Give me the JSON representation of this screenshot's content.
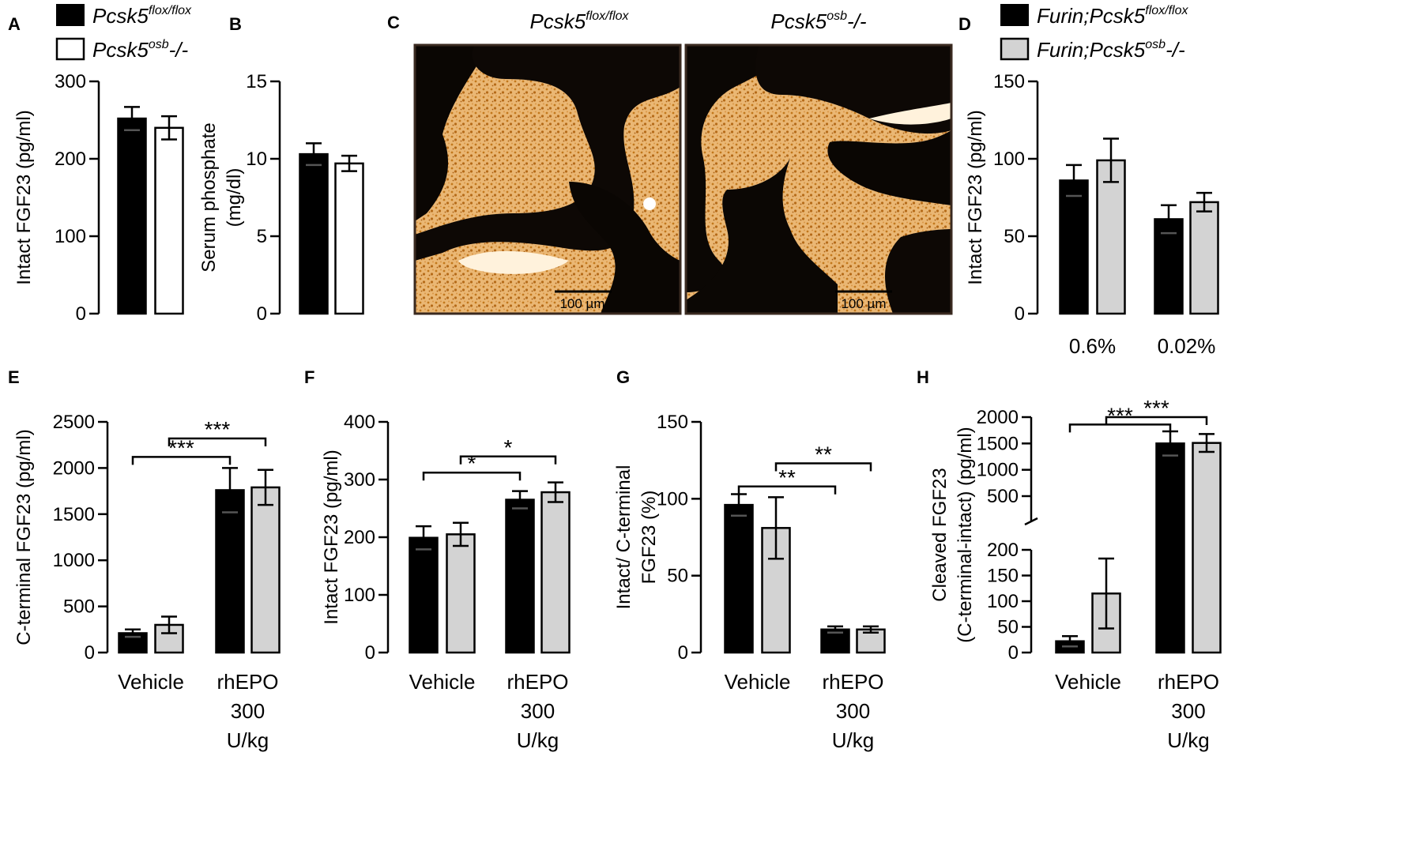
{
  "figure": {
    "legend_top_left": [
      {
        "gene": "Pcsk5",
        "sup": "flox/flox",
        "suffix": "",
        "fill": "#000000"
      },
      {
        "gene": "Pcsk5",
        "sup": "osb",
        "suffix": "-/-",
        "fill": "#ffffff"
      }
    ],
    "legend_top_right": [
      {
        "gene": "Furin;Pcsk5",
        "sup": "flox/flox",
        "suffix": "",
        "fill": "#000000"
      },
      {
        "gene": "Furin;Pcsk5",
        "sup": "osb",
        "suffix": "-/-",
        "fill": "#d3d3d3"
      }
    ],
    "micrographs": {
      "panel_label": "C",
      "titles": [
        {
          "gene": "Pcsk5",
          "sup": "flox/flox",
          "suffix": ""
        },
        {
          "gene": "Pcsk5",
          "sup": "osb",
          "suffix": "-/-"
        }
      ],
      "scale_bar": "100 µm"
    }
  },
  "chart_data": [
    {
      "panel": "A",
      "type": "bar",
      "ylabel": [
        "Intact FGF23 (pg/ml)"
      ],
      "ylim": [
        0,
        300
      ],
      "yticks": [
        0,
        100,
        200,
        300
      ],
      "categories": [
        ""
      ],
      "colors": [
        "#000000",
        "#ffffff"
      ],
      "series": [
        {
          "name": "Pcsk5 flox/flox",
          "values": [
            252
          ],
          "errors": [
            15
          ]
        },
        {
          "name": "Pcsk5 osb -/-",
          "values": [
            240
          ],
          "errors": [
            15
          ]
        }
      ],
      "brackets": []
    },
    {
      "panel": "B",
      "type": "bar",
      "ylabel": [
        "Serum phosphate",
        "(mg/dl)"
      ],
      "ylim": [
        0,
        15
      ],
      "yticks": [
        0,
        5,
        10,
        15
      ],
      "categories": [
        ""
      ],
      "colors": [
        "#000000",
        "#ffffff"
      ],
      "series": [
        {
          "name": "Pcsk5 flox/flox",
          "values": [
            10.3
          ],
          "errors": [
            0.7
          ]
        },
        {
          "name": "Pcsk5 osb -/-",
          "values": [
            9.7
          ],
          "errors": [
            0.5
          ]
        }
      ],
      "brackets": []
    },
    {
      "panel": "D",
      "type": "bar",
      "ylabel": [
        "Intact FGF23 (pg/ml)"
      ],
      "ylim": [
        0,
        150
      ],
      "yticks": [
        0,
        50,
        100,
        150
      ],
      "categories": [
        "0.6%",
        "0.02%"
      ],
      "colors": [
        "#000000",
        "#d3d3d3"
      ],
      "series": [
        {
          "name": "Furin;Pcsk5 flox/flox",
          "values": [
            86,
            61
          ],
          "errors": [
            10,
            9
          ]
        },
        {
          "name": "Furin;Pcsk5 osb -/-",
          "values": [
            99,
            72
          ],
          "errors": [
            14,
            6
          ]
        }
      ],
      "brackets": []
    },
    {
      "panel": "E",
      "type": "bar",
      "ylabel": [
        "C-terminal FGF23 (pg/ml)"
      ],
      "ylim": [
        0,
        2500
      ],
      "yticks": [
        0,
        500,
        1000,
        1500,
        2000,
        2500
      ],
      "categories": [
        "Vehicle",
        "rhEPO\n300\nU/kg"
      ],
      "colors": [
        "#000000",
        "#d3d3d3"
      ],
      "series": [
        {
          "name": "Furin;Pcsk5 flox/flox",
          "values": [
            210,
            1760
          ],
          "errors": [
            40,
            240
          ]
        },
        {
          "name": "Furin;Pcsk5 osb -/-",
          "values": [
            300,
            1790
          ],
          "errors": [
            90,
            190
          ]
        }
      ],
      "brackets": [
        {
          "from": [
            0,
            0
          ],
          "to": [
            1,
            0
          ],
          "label": "***",
          "y": 2120
        },
        {
          "from": [
            0,
            1
          ],
          "to": [
            1,
            1
          ],
          "label": "***",
          "y": 2320
        }
      ]
    },
    {
      "panel": "F",
      "type": "bar",
      "ylabel": [
        "Intact FGF23 (pg/ml)"
      ],
      "ylim": [
        0,
        400
      ],
      "yticks": [
        0,
        100,
        200,
        300,
        400
      ],
      "categories": [
        "Vehicle",
        "rhEPO\n300\nU/kg"
      ],
      "colors": [
        "#000000",
        "#d3d3d3"
      ],
      "series": [
        {
          "name": "Furin;Pcsk5 flox/flox",
          "values": [
            199,
            265
          ],
          "errors": [
            20,
            15
          ]
        },
        {
          "name": "Furin;Pcsk5 osb -/-",
          "values": [
            205,
            278
          ],
          "errors": [
            20,
            17
          ]
        }
      ],
      "brackets": [
        {
          "from": [
            0,
            0
          ],
          "to": [
            1,
            0
          ],
          "label": "*",
          "y": 312
        },
        {
          "from": [
            0,
            1
          ],
          "to": [
            1,
            1
          ],
          "label": "*",
          "y": 340
        }
      ]
    },
    {
      "panel": "G",
      "type": "bar",
      "ylabel": [
        "Intact/ C-terminal",
        "FGF23 (%)"
      ],
      "ylim": [
        0,
        150
      ],
      "yticks": [
        0,
        50,
        100,
        150
      ],
      "categories": [
        "Vehicle",
        "rhEPO\n300\nU/kg"
      ],
      "colors": [
        "#000000",
        "#d3d3d3"
      ],
      "series": [
        {
          "name": "Furin;Pcsk5 flox/flox",
          "values": [
            96,
            15
          ],
          "errors": [
            7,
            2
          ]
        },
        {
          "name": "Furin;Pcsk5 osb -/-",
          "values": [
            81,
            15
          ],
          "errors": [
            20,
            2
          ]
        }
      ],
      "brackets": [
        {
          "from": [
            0,
            0
          ],
          "to": [
            1,
            0
          ],
          "label": "**",
          "y": 108
        },
        {
          "from": [
            0,
            1
          ],
          "to": [
            1,
            1
          ],
          "label": "**",
          "y": 123
        }
      ]
    },
    {
      "panel": "H",
      "type": "bar",
      "ylabel": [
        "Cleaved FGF23",
        "(C-terminal-intact) (pg/ml)"
      ],
      "broken_axis": {
        "lower": [
          0,
          200
        ],
        "upper": [
          200,
          2000
        ]
      },
      "yticks_lower": [
        0,
        50,
        100,
        150,
        200
      ],
      "yticks_upper": [
        500,
        1000,
        1500,
        2000
      ],
      "categories": [
        "Vehicle",
        "rhEPO\n300\nU/kg"
      ],
      "colors": [
        "#000000",
        "#d3d3d3"
      ],
      "series": [
        {
          "name": "Furin;Pcsk5 flox/flox",
          "values": [
            22,
            1500
          ],
          "errors": [
            10,
            230
          ]
        },
        {
          "name": "Furin;Pcsk5 osb -/-",
          "values": [
            115,
            1510
          ],
          "errors": [
            68,
            170
          ]
        }
      ],
      "brackets": [
        {
          "from": [
            0,
            0
          ],
          "to": [
            1,
            0
          ],
          "label": "***",
          "y": 1860
        },
        {
          "from": [
            0,
            1
          ],
          "to": [
            1,
            1
          ],
          "label": "***",
          "y": 2150
        }
      ]
    }
  ]
}
